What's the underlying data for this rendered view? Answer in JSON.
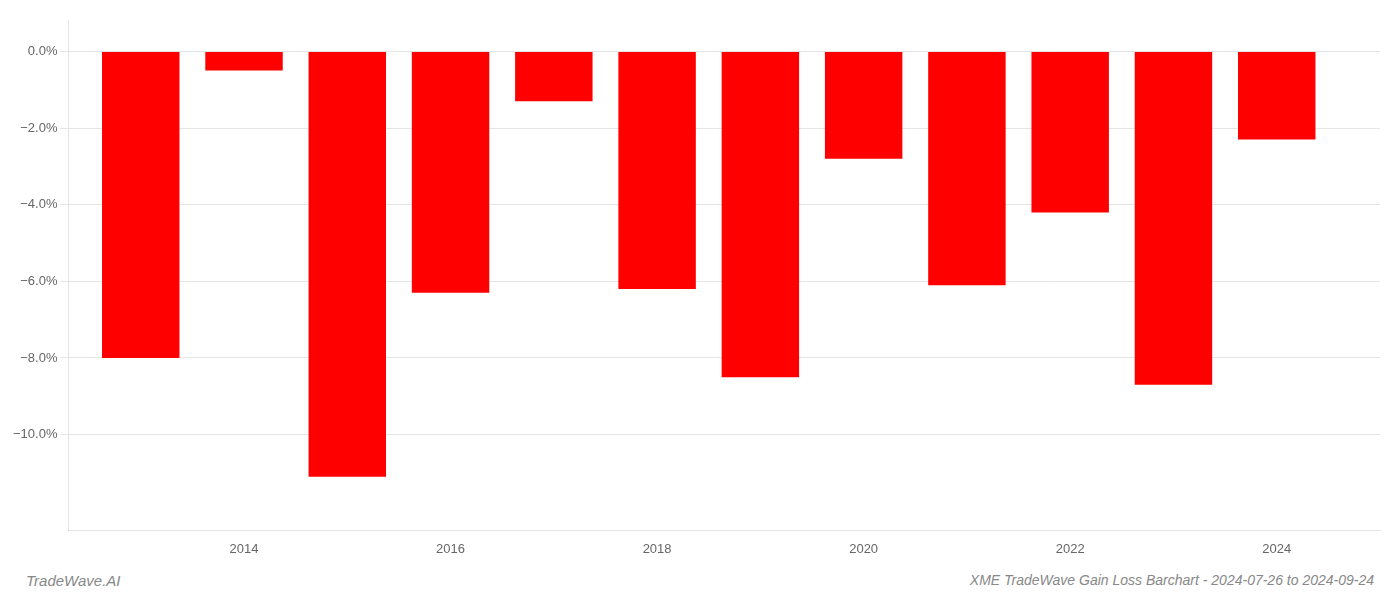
{
  "chart_data": {
    "type": "bar",
    "title": "XME TradeWave Gain Loss Barchart - 2024-07-26 to 2024-09-24",
    "annotations": [
      "TradeWave.AI"
    ],
    "x": [
      2013,
      2014,
      2015,
      2016,
      2017,
      2018,
      2019,
      2020,
      2021,
      2022,
      2023,
      2024
    ],
    "values": [
      -8.0,
      -0.5,
      -11.1,
      -6.3,
      -1.3,
      -6.2,
      -8.5,
      -2.8,
      -6.1,
      -4.2,
      -8.7,
      -2.3
    ],
    "color": "#ff0000",
    "xlim": [
      2012.3,
      2025.0
    ],
    "xticks": [
      2014,
      2016,
      2018,
      2020,
      2022,
      2024
    ],
    "ylim": [
      -12.5,
      0.8
    ],
    "yticks": [
      {
        "value": 0.0,
        "label": "0.0%"
      },
      {
        "value": -2.0,
        "label": "−2.0%"
      },
      {
        "value": -4.0,
        "label": "−4.0%"
      },
      {
        "value": -6.0,
        "label": "−6.0%"
      },
      {
        "value": -8.0,
        "label": "−8.0%"
      },
      {
        "value": -10.0,
        "label": "−10.0%"
      }
    ],
    "grid": true
  }
}
